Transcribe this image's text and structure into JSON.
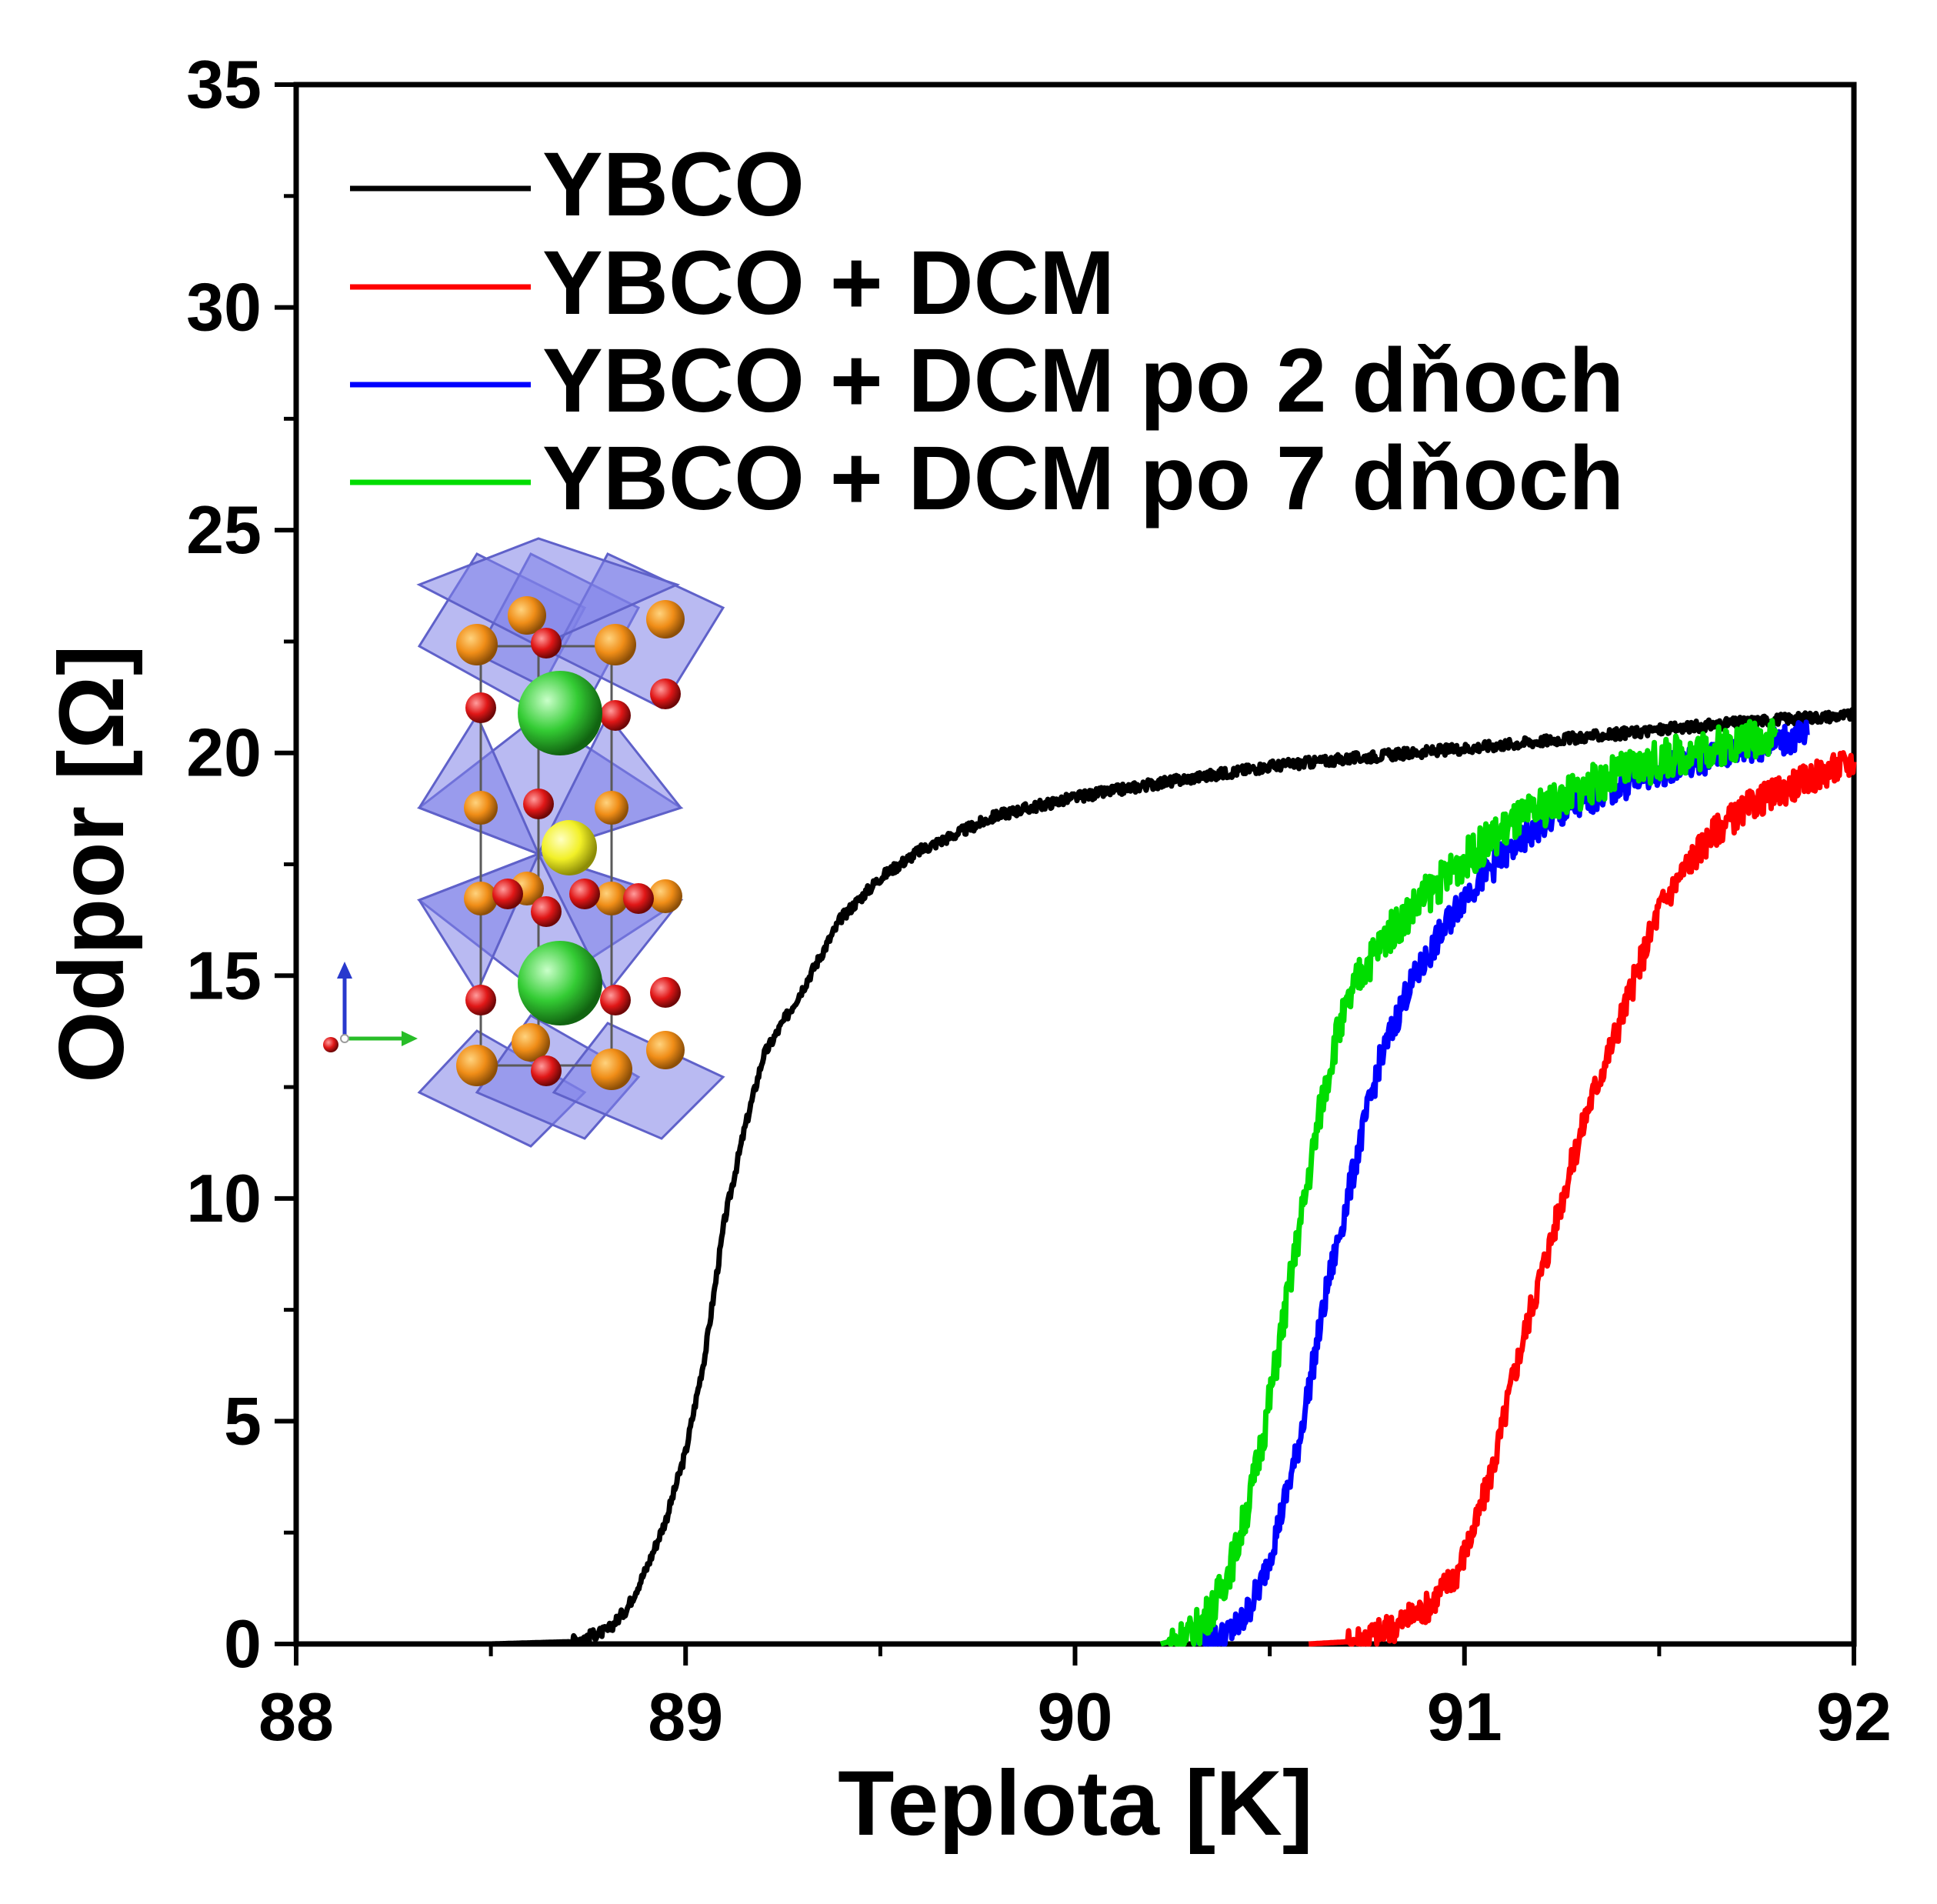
{
  "chart_data": {
    "type": "line",
    "xlabel": "Teplota [K]",
    "ylabel": "Odpor [Ω]",
    "xlim": [
      88,
      92
    ],
    "ylim": [
      0,
      35
    ],
    "x_ticks": [
      "88",
      "89",
      "90",
      "91",
      "92"
    ],
    "y_ticks": [
      "0",
      "5",
      "10",
      "15",
      "20",
      "25",
      "30",
      "35"
    ],
    "grid": false,
    "legend_position": "top-left",
    "series": [
      {
        "name": "YBCO",
        "color": "#000000",
        "points": [
          [
            88.0,
            0
          ],
          [
            88.5,
            0
          ],
          [
            88.7,
            0.05
          ],
          [
            88.8,
            0.3
          ],
          [
            88.85,
            0.8
          ],
          [
            88.9,
            1.7
          ],
          [
            88.95,
            2.8
          ],
          [
            89.0,
            4.3
          ],
          [
            89.05,
            6.5
          ],
          [
            89.08,
            8.3
          ],
          [
            89.1,
            9.5
          ],
          [
            89.15,
            11.5
          ],
          [
            89.2,
            13.2
          ],
          [
            89.3,
            14.7
          ],
          [
            89.4,
            16.3
          ],
          [
            89.5,
            17.2
          ],
          [
            89.6,
            17.8
          ],
          [
            89.7,
            18.2
          ],
          [
            89.8,
            18.6
          ],
          [
            90.0,
            19.0
          ],
          [
            90.2,
            19.3
          ],
          [
            90.5,
            19.7
          ],
          [
            90.8,
            19.95
          ],
          [
            91.0,
            20.1
          ],
          [
            91.3,
            20.35
          ],
          [
            91.6,
            20.6
          ],
          [
            91.8,
            20.75
          ],
          [
            92.0,
            20.85
          ]
        ]
      },
      {
        "name": "YBCO + DCM",
        "color": "#ff0000",
        "points": [
          [
            90.6,
            0
          ],
          [
            90.7,
            0.05
          ],
          [
            90.8,
            0.3
          ],
          [
            90.9,
            0.8
          ],
          [
            90.98,
            1.6
          ],
          [
            91.03,
            2.7
          ],
          [
            91.08,
            4.2
          ],
          [
            91.12,
            5.8
          ],
          [
            91.17,
            7.5
          ],
          [
            91.22,
            9.0
          ],
          [
            91.27,
            10.6
          ],
          [
            91.32,
            12.1
          ],
          [
            91.38,
            13.5
          ],
          [
            91.44,
            15.0
          ],
          [
            91.5,
            16.5
          ],
          [
            91.58,
            17.6
          ],
          [
            91.65,
            18.3
          ],
          [
            91.75,
            18.9
          ],
          [
            91.85,
            19.3
          ],
          [
            91.92,
            19.55
          ],
          [
            92.0,
            19.8
          ]
        ]
      },
      {
        "name": "YBCO + DCM po 2 dňoch",
        "color": "#0000ff",
        "points": [
          [
            90.3,
            0
          ],
          [
            90.38,
            0.15
          ],
          [
            90.43,
            0.5
          ],
          [
            90.48,
            1.4
          ],
          [
            90.52,
            2.6
          ],
          [
            90.57,
            4.3
          ],
          [
            90.61,
            6.2
          ],
          [
            90.65,
            8.1
          ],
          [
            90.69,
            9.6
          ],
          [
            90.73,
            11.2
          ],
          [
            90.78,
            13.0
          ],
          [
            90.85,
            14.6
          ],
          [
            90.93,
            15.8
          ],
          [
            91.0,
            16.8
          ],
          [
            91.1,
            17.7
          ],
          [
            91.2,
            18.4
          ],
          [
            91.35,
            19.1
          ],
          [
            91.5,
            19.6
          ],
          [
            91.65,
            19.95
          ],
          [
            91.8,
            20.25
          ],
          [
            91.88,
            20.4
          ]
        ]
      },
      {
        "name": "YBCO + DCM po 7 dňoch",
        "color": "#00dd00",
        "points": [
          [
            90.22,
            0
          ],
          [
            90.3,
            0.2
          ],
          [
            90.36,
            0.9
          ],
          [
            90.41,
            2.0
          ],
          [
            90.45,
            3.3
          ],
          [
            90.49,
            5.0
          ],
          [
            90.53,
            7.0
          ],
          [
            90.57,
            9.0
          ],
          [
            90.6,
            10.5
          ],
          [
            90.63,
            12.0
          ],
          [
            90.67,
            13.6
          ],
          [
            90.73,
            15.0
          ],
          [
            90.8,
            15.9
          ],
          [
            90.9,
            16.8
          ],
          [
            91.0,
            17.6
          ],
          [
            91.12,
            18.4
          ],
          [
            91.25,
            19.0
          ],
          [
            91.4,
            19.55
          ],
          [
            91.55,
            19.95
          ],
          [
            91.7,
            20.25
          ],
          [
            91.8,
            20.45
          ]
        ]
      }
    ]
  }
}
